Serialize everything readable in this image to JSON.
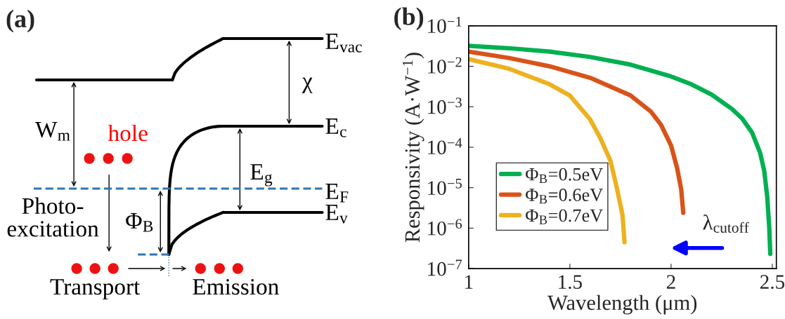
{
  "chart_data": [
    {
      "type": "other",
      "title": "(a)",
      "annotations": [
        "E$_{vac}$",
        "χ",
        "W$_{m}$",
        "hole",
        "E$_{c}$",
        "E$_{g}$",
        "E$_{F}$",
        "Φ$_{B}$",
        "Photo-\nexcitation",
        "E$_{v}$",
        "Transport",
        "Emission"
      ]
    },
    {
      "type": "line",
      "title": "(b)",
      "xlabel": "Wavelength (μm)",
      "ylabel": "Responsivity (A·W$^{−1}$)",
      "log": true,
      "xlim": [
        1,
        2.52
      ],
      "xticks": [
        1,
        1.5,
        2,
        2.5
      ],
      "ylim": [
        1e-07,
        0.1
      ],
      "yticks": [
        {
          "value": 1e-07,
          "label": "10$^{−7}$"
        },
        {
          "value": 1e-06,
          "label": "10$^{−6}$"
        },
        {
          "value": 1e-05,
          "label": "10$^{−5}$"
        },
        {
          "value": 0.0001,
          "label": "10$^{−4}$"
        },
        {
          "value": 0.001,
          "label": "10$^{−3}$"
        },
        {
          "value": 0.01,
          "label": "10$^{−2}$"
        },
        {
          "value": 0.1,
          "label": "10$^{−1}$"
        }
      ],
      "legend": "bottom left",
      "annotations": [
        "λ$_{cutoff}$"
      ],
      "series": [
        {
          "name": "Φ$_{B}$=0.5eV",
          "color": "#00b050",
          "x": [
            1,
            1.2,
            1.4,
            1.6,
            1.8,
            2.0,
            2.1,
            2.2,
            2.3,
            2.35,
            2.4,
            2.44,
            2.46,
            2.475,
            2.485,
            2.49
          ],
          "values": [
            0.032,
            0.028,
            0.023,
            0.017,
            0.011,
            0.0056,
            0.0036,
            0.002,
            0.00089,
            0.00052,
            0.00023,
            7.2e-05,
            2.6e-05,
            5.9e-06,
            1e-06,
            2.3e-07
          ]
        },
        {
          "name": "Φ$_{B}$=0.6eV",
          "color": "#d95319",
          "x": [
            1,
            1.2,
            1.4,
            1.6,
            1.8,
            1.9,
            1.95,
            2.0,
            2.03,
            2.05,
            2.06
          ],
          "values": [
            0.023,
            0.016,
            0.01,
            0.0052,
            0.0019,
            0.00076,
            0.00036,
            0.00011,
            3e-05,
            9.1e-06,
            2.4e-06
          ]
        },
        {
          "name": "Φ$_{B}$=0.7eV",
          "color": "#edb120",
          "x": [
            1,
            1.2,
            1.4,
            1.5,
            1.6,
            1.65,
            1.7,
            1.73,
            1.76,
            1.77
          ],
          "values": [
            0.015,
            0.0087,
            0.0036,
            0.0019,
            0.00049,
            0.00017,
            4.7e-05,
            1.1e-05,
            2.1e-06,
            4.5e-07
          ]
        }
      ]
    }
  ]
}
